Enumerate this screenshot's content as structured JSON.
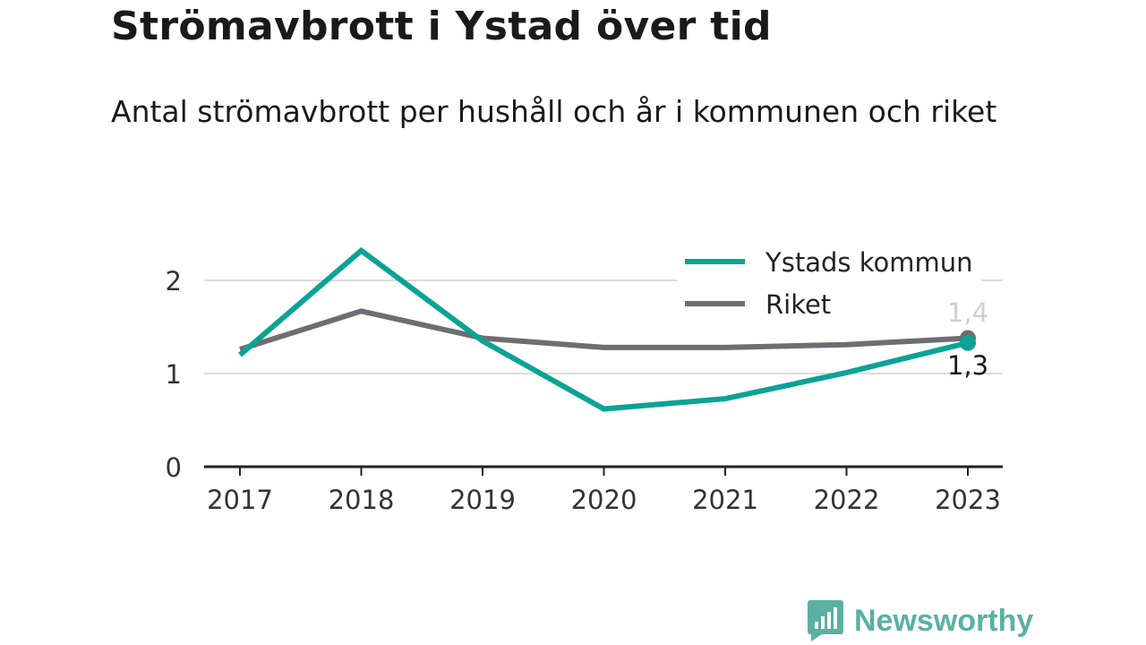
{
  "header": {
    "title": "Strömavbrott i Ystad över tid",
    "subtitle": "Antal strömavbrott per hushåll och år i kommunen och riket"
  },
  "chart_data": {
    "type": "line",
    "x": [
      "2017",
      "2018",
      "2019",
      "2020",
      "2021",
      "2022",
      "2023"
    ],
    "y_ticks": [
      "0",
      "1",
      "2"
    ],
    "ylim": [
      0,
      2.5
    ],
    "grid": true,
    "legend_position": "top-right",
    "series": [
      {
        "name": "Ystads kommun",
        "color": "#0aa395",
        "values": [
          1.2,
          2.32,
          1.35,
          0.62,
          0.73,
          1.01,
          1.33
        ],
        "end_label": "1,3"
      },
      {
        "name": "Riket",
        "color": "#6e6d73",
        "values": [
          1.26,
          1.67,
          1.38,
          1.28,
          1.28,
          1.31,
          1.38
        ],
        "end_label": "1,4"
      }
    ]
  },
  "branding": {
    "logo_text": "Newsworthy",
    "logo_color": "#5bb0a2"
  }
}
